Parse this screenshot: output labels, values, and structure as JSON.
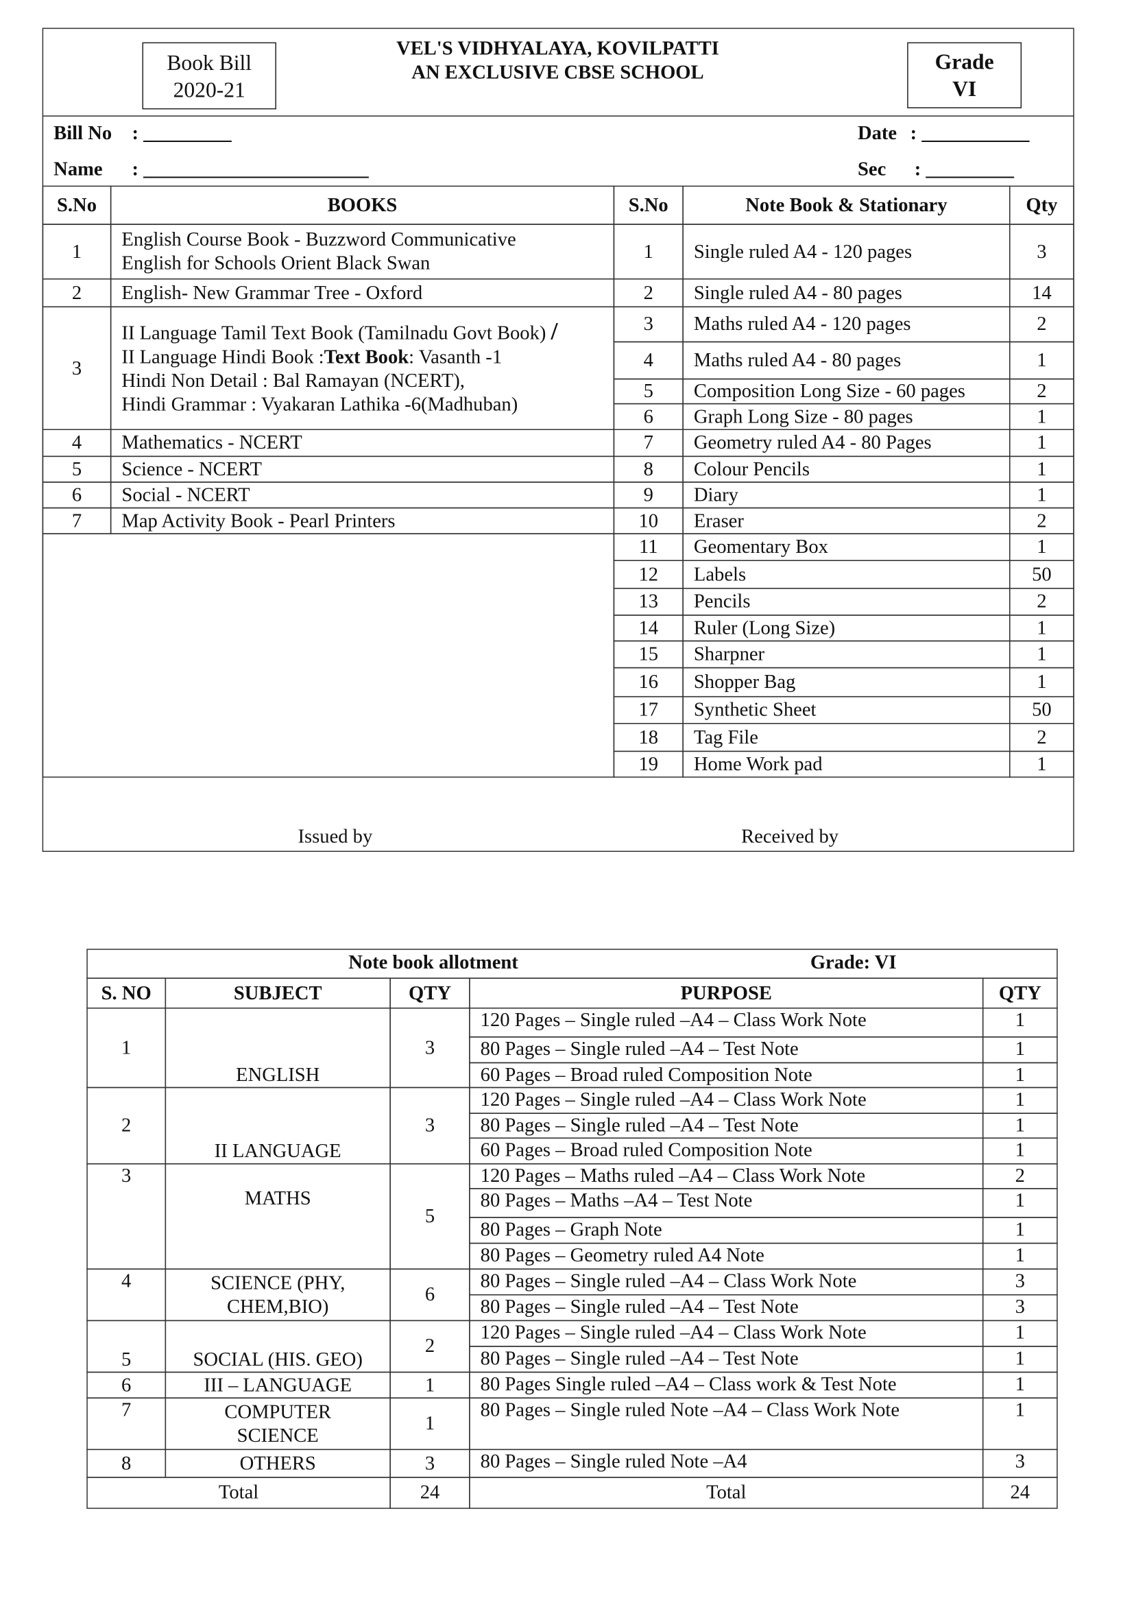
{
  "header": {
    "school_name": "VEL'S VIDHYALAYA, KOVILPATTI",
    "school_tagline": "AN EXCLUSIVE CBSE SCHOOL",
    "bill_title": "Book Bill",
    "bill_year": "2020-21",
    "grade_label": "Grade",
    "grade_value": "VI"
  },
  "fields": {
    "bill_no_label": "Bill No",
    "bill_no_value": ":   _________",
    "date_label": "Date",
    "date_value": ":  ___________",
    "name_label": "Name",
    "name_value": ":   _______________________",
    "sec_label": "Sec",
    "sec_value": ":   _________"
  },
  "books": {
    "headers": {
      "sno": "S.No",
      "books": "BOOKS"
    },
    "rows": [
      {
        "sno": "1",
        "lines": [
          "English Course Book  -  Buzzword Communicative",
          "English for Schools Orient Black Swan"
        ]
      },
      {
        "sno": "2",
        "lines": [
          "English- New Grammar Tree - Oxford"
        ]
      },
      {
        "sno": "3",
        "line1": "II Language Tamil Text Book (Tamilnadu Govt Book)",
        "line1_sep": "/",
        "line2_a": "II Language Hindi  Book :",
        "line2_b": "Text Book",
        "line2_c": ": Vasanth -1",
        "line3": "Hindi Non Detail : Bal Ramayan (NCERT),",
        "line4": "Hindi Grammar : Vyakaran Lathika -6(Madhuban)"
      },
      {
        "sno": "4",
        "lines": [
          "Mathematics - NCERT"
        ]
      },
      {
        "sno": "5",
        "lines": [
          "Science  - NCERT"
        ]
      },
      {
        "sno": "6",
        "lines": [
          "Social  - NCERT"
        ]
      },
      {
        "sno": "7",
        "lines": [
          "Map Activity Book - Pearl Printers"
        ]
      }
    ]
  },
  "stationery": {
    "headers": {
      "sno": "S.No",
      "item": "Note Book & Stationary",
      "qty": "Qty"
    },
    "rows": [
      {
        "sno": "1",
        "item": "Single ruled  A4  - 120 pages",
        "qty": "3"
      },
      {
        "sno": "2",
        "item": "Single ruled A4   -  80 pages",
        "qty": "14"
      },
      {
        "sno": "3",
        "item": "Maths ruled A4   -  120 pages",
        "qty": "2"
      },
      {
        "sno": "4",
        "item": "Maths ruled A4  -  80 pages",
        "qty": "1"
      },
      {
        "sno": "5",
        "item": "Composition Long Size -  60 pages",
        "qty": "2"
      },
      {
        "sno": "6",
        "item": "Graph  Long Size -  80 pages",
        "qty": "1"
      },
      {
        "sno": "7",
        "item": "Geometry ruled A4 - 80 Pages",
        "qty": "1"
      },
      {
        "sno": "8",
        "item": "Colour Pencils",
        "qty": "1"
      },
      {
        "sno": "9",
        "item": "Diary",
        "qty": "1"
      },
      {
        "sno": "10",
        "item": "Eraser",
        "qty": "2"
      },
      {
        "sno": "11",
        "item": "Geomentary Box",
        "qty": "1"
      },
      {
        "sno": "12",
        "item": "Labels",
        "qty": "50"
      },
      {
        "sno": "13",
        "item": "Pencils",
        "qty": "2"
      },
      {
        "sno": "14",
        "item": "Ruler (Long Size)",
        "qty": "1"
      },
      {
        "sno": "15",
        "item": "Sharpner",
        "qty": "1"
      },
      {
        "sno": "16",
        "item": "Shopper Bag",
        "qty": "1"
      },
      {
        "sno": "17",
        "item": "Synthetic Sheet",
        "qty": "50"
      },
      {
        "sno": "18",
        "item": "Tag File",
        "qty": "2"
      },
      {
        "sno": "19",
        "item": "Home Work pad",
        "qty": "1"
      }
    ]
  },
  "signatures": {
    "issued_by": "Issued by",
    "received_by": "Received by"
  },
  "allotment": {
    "title": "Note book allotment",
    "grade": "Grade: VI",
    "headers": {
      "sno": "S. NO",
      "subject": "SUBJECT",
      "qty": "QTY",
      "purpose": "PURPOSE",
      "qty2": "QTY"
    },
    "groups": [
      {
        "sno": "1",
        "subject": [
          "ENGLISH"
        ],
        "qty": "3",
        "items": [
          {
            "purpose": "120 Pages – Single ruled –A4 – Class Work Note",
            "qty": "1"
          },
          {
            "purpose": "80 Pages – Single ruled –A4 – Test  Note",
            "qty": "1"
          },
          {
            "purpose": "60 Pages – Broad ruled Composition Note",
            "qty": "1"
          }
        ]
      },
      {
        "sno": "2",
        "subject": [
          "II LANGUAGE"
        ],
        "qty": "3",
        "items": [
          {
            "purpose": "120 Pages – Single ruled –A4 – Class Work Note",
            "qty": "1"
          },
          {
            "purpose": "80 Pages – Single ruled –A4 – Test  Note",
            "qty": "1"
          },
          {
            "purpose": "60 Pages – Broad ruled Composition Note",
            "qty": "1"
          }
        ]
      },
      {
        "sno": "3",
        "subject": [
          "MATHS"
        ],
        "qty": "5",
        "items": [
          {
            "purpose": "120  Pages – Maths ruled –A4 – Class Work Note",
            "qty": "2"
          },
          {
            "purpose": "80 Pages – Maths –A4 – Test  Note",
            "qty": "1"
          },
          {
            "purpose": "80 Pages – Graph Note",
            "qty": "1"
          },
          {
            "purpose": "80 Pages – Geometry ruled  A4  Note",
            "qty": "1"
          }
        ]
      },
      {
        "sno": "4",
        "subject": [
          "SCIENCE (PHY,",
          "CHEM,BIO)"
        ],
        "qty": "6",
        "items": [
          {
            "purpose": "80 Pages – Single ruled –A4 –  Class Work Note",
            "qty": "3"
          },
          {
            "purpose": "80 Pages – Single ruled –A4 – Test  Note",
            "qty": "3"
          }
        ]
      },
      {
        "sno": "5",
        "subject": [
          "SOCIAL (HIS. GEO)"
        ],
        "qty": "2",
        "items": [
          {
            "purpose": "120 Pages – Single ruled –A4 – Class Work Note",
            "qty": "1"
          },
          {
            "purpose": "80 Pages – Single ruled –A4 – Test  Note",
            "qty": "1"
          }
        ]
      },
      {
        "sno": "6",
        "subject": [
          "III – LANGUAGE"
        ],
        "qty": "1",
        "items": [
          {
            "purpose": "80 Pages Single ruled –A4 –  Class work &  Test  Note",
            "qty": "1"
          }
        ]
      },
      {
        "sno": "7",
        "subject": [
          "COMPUTER",
          "SCIENCE"
        ],
        "qty": "1",
        "items": [
          {
            "purpose": "80 Pages – Single ruled Note –A4 – Class Work Note",
            "qty": "1"
          }
        ]
      },
      {
        "sno": "8",
        "subject": [
          "OTHERS"
        ],
        "qty": "3",
        "items": [
          {
            "purpose": "80 Pages – Single ruled Note –A4",
            "qty": "3"
          }
        ]
      }
    ],
    "total_label": "Total",
    "total_qty": "24",
    "total_label2": "Total",
    "total_qty2": "24"
  }
}
